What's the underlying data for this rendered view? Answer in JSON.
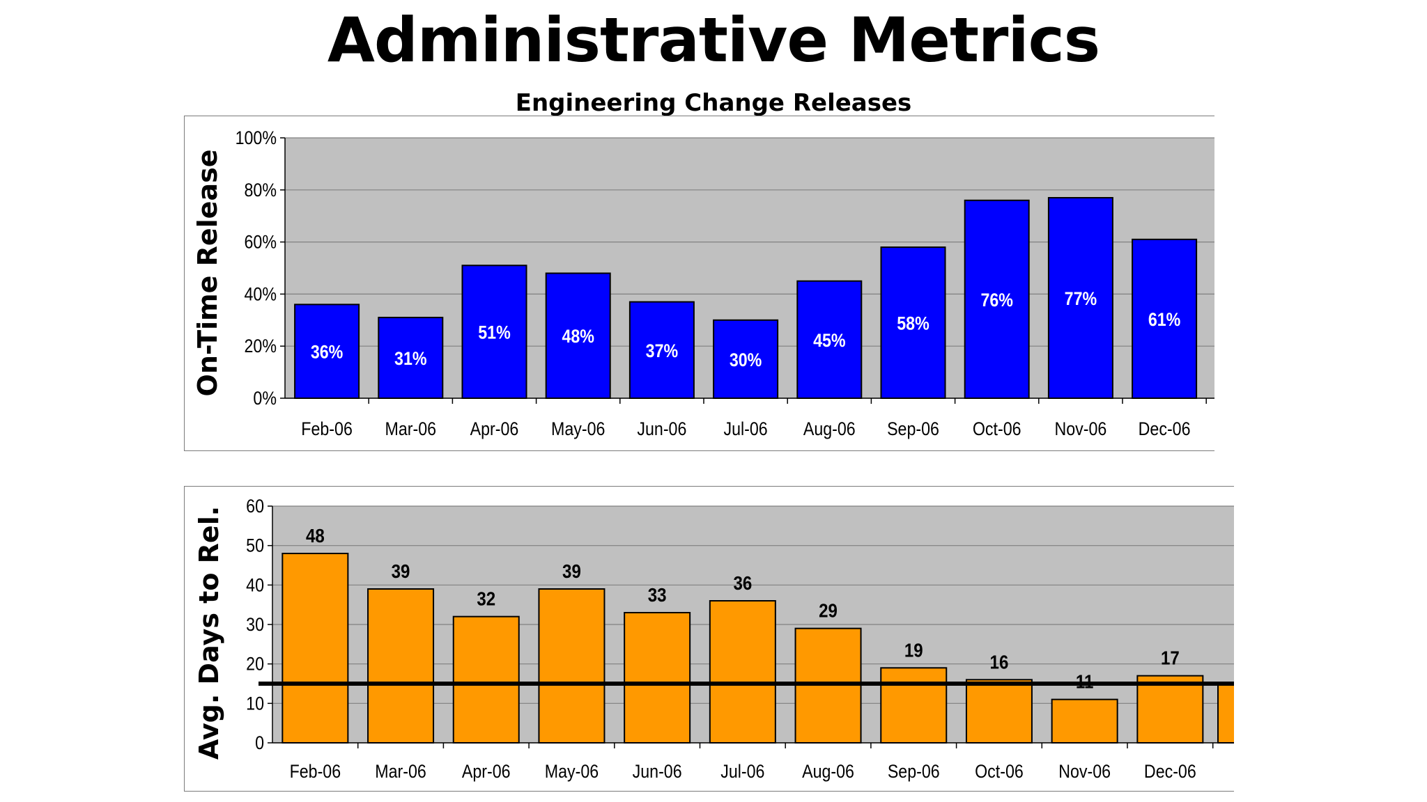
{
  "title": "Administrative Metrics",
  "subtitle": "Engineering Change Releases",
  "chart_data": [
    {
      "type": "bar",
      "title": "Engineering Change Releases",
      "ylabel": "On-Time Release",
      "xlabel": "",
      "ylim": [
        0,
        100
      ],
      "yticks": [
        "0%",
        "20%",
        "40%",
        "60%",
        "80%",
        "100%"
      ],
      "categories": [
        "Feb-06",
        "Mar-06",
        "Apr-06",
        "May-06",
        "Jun-06",
        "Jul-06",
        "Aug-06",
        "Sep-06",
        "Oct-06",
        "Nov-06",
        "Dec-06"
      ],
      "series": [
        {
          "values": [
            36,
            31,
            51,
            48,
            37,
            30,
            45,
            58,
            76,
            77,
            61
          ]
        }
      ],
      "data_labels": [
        "36%",
        "31%",
        "51%",
        "48%",
        "37%",
        "30%",
        "45%",
        "58%",
        "76%",
        "77%",
        "61%"
      ],
      "bar_color": "#0000ff",
      "plot_background": "#c0c0c0",
      "grid": true
    },
    {
      "type": "bar",
      "ylabel": "Avg. Days to Rel.",
      "xlabel": "",
      "ylim": [
        0,
        60
      ],
      "yticks": [
        "0",
        "10",
        "20",
        "30",
        "40",
        "50",
        "60"
      ],
      "categories": [
        "Feb-06",
        "Mar-06",
        "Apr-06",
        "May-06",
        "Jun-06",
        "Jul-06",
        "Aug-06",
        "Sep-06",
        "Oct-06",
        "Nov-06",
        "Dec-06"
      ],
      "series": [
        {
          "values": [
            48,
            39,
            32,
            39,
            33,
            36,
            29,
            19,
            16,
            11,
            17
          ]
        }
      ],
      "data_labels": [
        "48",
        "39",
        "32",
        "39",
        "33",
        "36",
        "29",
        "19",
        "16",
        "11",
        "17"
      ],
      "reference_line": 15,
      "bar_color": "#ff9900",
      "plot_background": "#c0c0c0",
      "grid": true
    }
  ]
}
